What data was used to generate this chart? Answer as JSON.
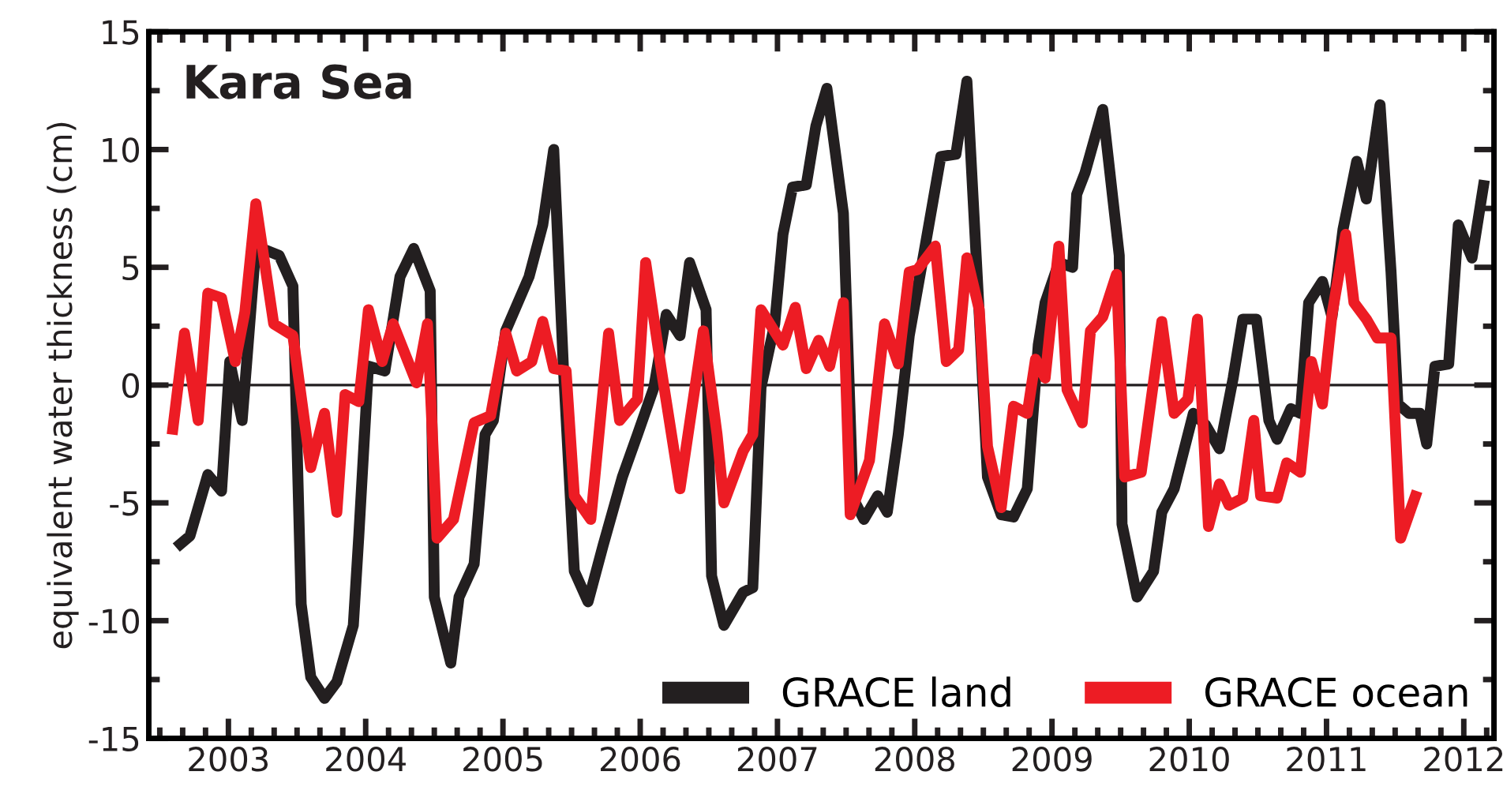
{
  "chart_data": {
    "type": "line",
    "title": "Kara Sea",
    "ylabel": "equivalent water thickness (cm)",
    "xlim": [
      2002.42,
      2012.22
    ],
    "xticks": [
      {
        "value": 2002.5,
        "label": null
      },
      {
        "value": 2002.6667,
        "label": null
      },
      {
        "value": 2002.8333,
        "label": null
      },
      2003,
      {
        "value": 2003.1667,
        "label": null
      },
      {
        "value": 2003.3333,
        "label": null
      },
      {
        "value": 2003.5,
        "label": null
      },
      {
        "value": 2003.6667,
        "label": null
      },
      {
        "value": 2003.8333,
        "label": null
      },
      2004,
      {
        "value": 2004.1667,
        "label": null
      },
      {
        "value": 2004.3333,
        "label": null
      },
      {
        "value": 2004.5,
        "label": null
      },
      {
        "value": 2004.6667,
        "label": null
      },
      {
        "value": 2004.8333,
        "label": null
      },
      2005,
      {
        "value": 2005.1667,
        "label": null
      },
      {
        "value": 2005.3333,
        "label": null
      },
      {
        "value": 2005.5,
        "label": null
      },
      {
        "value": 2005.6667,
        "label": null
      },
      {
        "value": 2005.8333,
        "label": null
      },
      2006,
      {
        "value": 2006.1667,
        "label": null
      },
      {
        "value": 2006.3333,
        "label": null
      },
      {
        "value": 2006.5,
        "label": null
      },
      {
        "value": 2006.6667,
        "label": null
      },
      {
        "value": 2006.8333,
        "label": null
      },
      2007,
      {
        "value": 2007.1667,
        "label": null
      },
      {
        "value": 2007.3333,
        "label": null
      },
      {
        "value": 2007.5,
        "label": null
      },
      {
        "value": 2007.6667,
        "label": null
      },
      {
        "value": 2007.8333,
        "label": null
      },
      2008,
      {
        "value": 2008.1667,
        "label": null
      },
      {
        "value": 2008.3333,
        "label": null
      },
      {
        "value": 2008.5,
        "label": null
      },
      {
        "value": 2008.6667,
        "label": null
      },
      {
        "value": 2008.8333,
        "label": null
      },
      2009,
      {
        "value": 2009.1667,
        "label": null
      },
      {
        "value": 2009.3333,
        "label": null
      },
      {
        "value": 2009.5,
        "label": null
      },
      {
        "value": 2009.6667,
        "label": null
      },
      {
        "value": 2009.8333,
        "label": null
      },
      2010,
      {
        "value": 2010.1667,
        "label": null
      },
      {
        "value": 2010.3333,
        "label": null
      },
      {
        "value": 2010.5,
        "label": null
      },
      {
        "value": 2010.6667,
        "label": null
      },
      {
        "value": 2010.8333,
        "label": null
      },
      2011,
      {
        "value": 2011.1667,
        "label": null
      },
      {
        "value": 2011.3333,
        "label": null
      },
      {
        "value": 2011.5,
        "label": null
      },
      {
        "value": 2011.6667,
        "label": null
      },
      {
        "value": 2011.8333,
        "label": null
      },
      2012,
      {
        "value": 2012.1667,
        "label": null
      }
    ],
    "ylim": [
      -15,
      15
    ],
    "yticks": [
      -15,
      {
        "value": -12.5,
        "label": null
      },
      -10,
      {
        "value": -7.5,
        "label": null
      },
      -5,
      {
        "value": -2.5,
        "label": null
      },
      0,
      {
        "value": 2.5,
        "label": null
      },
      5,
      {
        "value": 7.5,
        "label": null
      },
      10,
      {
        "value": 12.5,
        "label": null
      },
      15
    ],
    "grid": false,
    "legend": "bottom right",
    "line_style": "solid",
    "marker": "none",
    "ref_lines": [
      {
        "axis": "y",
        "value": 0,
        "label": null,
        "color": "#231f20"
      }
    ],
    "series": [
      {
        "name": "GRACE land",
        "color": "#231f20",
        "x": [
          2002.62,
          2002.72,
          2002.85,
          2002.95,
          2003.01,
          2003.1,
          2003.2,
          2003.37,
          2003.47,
          2003.53,
          2003.6,
          2003.7,
          2003.79,
          2003.91,
          2003.95,
          2004.02,
          2004.14,
          2004.25,
          2004.35,
          2004.47,
          2004.5,
          2004.62,
          2004.68,
          2004.79,
          2004.87,
          2004.93,
          2005.02,
          2005.19,
          2005.29,
          2005.37,
          2005.44,
          2005.52,
          2005.62,
          2005.73,
          2005.87,
          2005.98,
          2006.1,
          2006.19,
          2006.29,
          2006.36,
          2006.48,
          2006.52,
          2006.61,
          2006.75,
          2006.82,
          2006.88,
          2006.98,
          2007.04,
          2007.11,
          2007.21,
          2007.28,
          2007.36,
          2007.48,
          2007.55,
          2007.63,
          2007.73,
          2007.8,
          2007.88,
          2007.96,
          2008.07,
          2008.19,
          2008.3,
          2008.38,
          2008.47,
          2008.53,
          2008.63,
          2008.72,
          2008.82,
          2008.9,
          2008.95,
          2009.05,
          2009.15,
          2009.18,
          2009.24,
          2009.37,
          2009.49,
          2009.51,
          2009.62,
          2009.74,
          2009.8,
          2009.89,
          2010.03,
          2010.12,
          2010.22,
          2010.32,
          2010.39,
          2010.49,
          2010.58,
          2010.64,
          2010.74,
          2010.81,
          2010.87,
          2010.97,
          2011.04,
          2011.12,
          2011.22,
          2011.29,
          2011.39,
          2011.47,
          2011.52,
          2011.6,
          2011.68,
          2011.73,
          2011.79,
          2011.89,
          2011.96,
          2012.06,
          2012.15
        ],
        "values": [
          -6.9,
          -6.4,
          -3.8,
          -4.5,
          1.0,
          -1.5,
          5.9,
          5.5,
          4.2,
          -9.3,
          -12.4,
          -13.3,
          -12.6,
          -10.2,
          -6.4,
          0.8,
          0.6,
          4.6,
          5.8,
          4.0,
          -9.0,
          -11.8,
          -9.0,
          -7.6,
          -2.1,
          -1.5,
          2.3,
          4.6,
          6.8,
          10.0,
          0.8,
          -7.9,
          -9.2,
          -6.8,
          -3.9,
          -2.1,
          -0.1,
          3.0,
          2.1,
          5.2,
          3.2,
          -8.1,
          -10.2,
          -8.8,
          -8.6,
          -0.1,
          2.6,
          6.4,
          8.4,
          8.5,
          11.0,
          12.6,
          7.3,
          -4.8,
          -5.7,
          -4.7,
          -5.4,
          -2.1,
          2.1,
          5.7,
          9.7,
          9.8,
          12.9,
          3.0,
          -3.9,
          -5.5,
          -5.6,
          -4.4,
          1.7,
          3.5,
          5.2,
          5.0,
          8.1,
          9.0,
          11.7,
          5.5,
          -5.9,
          -9.0,
          -7.9,
          -5.4,
          -4.4,
          -1.2,
          -1.7,
          -2.7,
          0.3,
          2.8,
          2.8,
          -1.5,
          -2.3,
          -1.0,
          -1.2,
          3.5,
          4.4,
          2.9,
          6.6,
          9.5,
          7.9,
          11.9,
          4.8,
          -0.8,
          -1.2,
          -1.2,
          -2.5,
          0.8,
          0.9,
          6.8,
          5.4,
          8.7
        ]
      },
      {
        "name": "GRACE ocean",
        "color": "#ed1c24",
        "x": [
          2002.59,
          2002.68,
          2002.78,
          2002.85,
          2002.95,
          2003.05,
          2003.12,
          2003.2,
          2003.33,
          2003.47,
          2003.6,
          2003.7,
          2003.79,
          2003.85,
          2003.95,
          2004.02,
          2004.12,
          2004.2,
          2004.37,
          2004.45,
          2004.52,
          2004.64,
          2004.79,
          2004.91,
          2005.02,
          2005.1,
          2005.21,
          2005.29,
          2005.37,
          2005.46,
          2005.52,
          2005.64,
          2005.77,
          2005.85,
          2005.98,
          2006.04,
          2006.15,
          2006.29,
          2006.46,
          2006.56,
          2006.61,
          2006.75,
          2006.82,
          2006.88,
          2007.04,
          2007.13,
          2007.21,
          2007.3,
          2007.38,
          2007.48,
          2007.53,
          2007.67,
          2007.78,
          2007.88,
          2007.96,
          2008.02,
          2008.15,
          2008.23,
          2008.32,
          2008.38,
          2008.47,
          2008.53,
          2008.63,
          2008.72,
          2008.82,
          2008.88,
          2008.95,
          2009.05,
          2009.11,
          2009.22,
          2009.28,
          2009.37,
          2009.47,
          2009.53,
          2009.65,
          2009.8,
          2009.89,
          2009.99,
          2010.06,
          2010.14,
          2010.22,
          2010.29,
          2010.39,
          2010.47,
          2010.52,
          2010.64,
          2010.71,
          2010.81,
          2010.89,
          2010.97,
          2011.04,
          2011.14,
          2011.2,
          2011.29,
          2011.37,
          2011.47,
          2011.54,
          2011.66
        ],
        "values": [
          -2.1,
          2.2,
          -1.5,
          3.9,
          3.7,
          1.0,
          3.1,
          7.7,
          2.6,
          2.1,
          -3.5,
          -1.2,
          -5.4,
          -0.4,
          -0.7,
          3.2,
          1.0,
          2.6,
          0.1,
          2.6,
          -6.5,
          -5.7,
          -1.6,
          -1.3,
          2.2,
          0.6,
          1.0,
          2.7,
          0.7,
          0.6,
          -4.7,
          -5.7,
          2.2,
          -1.5,
          -0.6,
          5.2,
          0.8,
          -4.4,
          2.3,
          -2.1,
          -5.0,
          -2.8,
          -2.1,
          3.2,
          1.7,
          3.3,
          0.7,
          1.9,
          0.8,
          3.5,
          -5.5,
          -3.2,
          2.6,
          0.9,
          4.8,
          4.9,
          5.9,
          1.0,
          1.5,
          5.4,
          3.2,
          -2.6,
          -5.2,
          -0.9,
          -1.2,
          1.1,
          0.3,
          5.9,
          -0.2,
          -1.6,
          2.3,
          2.9,
          4.7,
          -3.9,
          -3.7,
          2.7,
          -1.2,
          -0.6,
          2.8,
          -6.0,
          -4.2,
          -5.1,
          -4.8,
          -1.5,
          -4.7,
          -4.8,
          -3.3,
          -3.7,
          1.0,
          -0.8,
          3.0,
          6.4,
          3.5,
          2.8,
          2.0,
          2.0,
          -6.5,
          -4.5
        ]
      }
    ]
  }
}
